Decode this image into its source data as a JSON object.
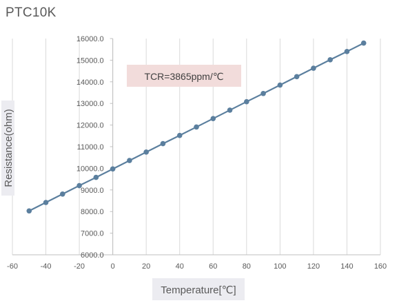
{
  "chart_data": {
    "type": "line",
    "title": "PTC10K",
    "xlabel": "Temperature[℃]",
    "ylabel": "Resistance(ohm)",
    "annotation": "TCR=3865ppm/℃",
    "xlim": [
      -60,
      160
    ],
    "ylim": [
      6000,
      16000
    ],
    "x_ticks": [
      "-60",
      "-40",
      "-20",
      "0",
      "20",
      "40",
      "60",
      "80",
      "100",
      "120",
      "140",
      "160"
    ],
    "y_ticks": [
      "6000.0",
      "7000.0",
      "8000.0",
      "9000.0",
      "10000.0",
      "11000.0",
      "12000.0",
      "13000.0",
      "14000.0",
      "15000.0",
      "16000.0"
    ],
    "grid": "vertical",
    "series": [
      {
        "x": [
          -50,
          -40,
          -30,
          -20,
          -10,
          0,
          10,
          20,
          30,
          40,
          50,
          60,
          70,
          80,
          90,
          100,
          110,
          120,
          130,
          140,
          150
        ],
        "values": [
          8030,
          8420,
          8810,
          9200,
          9580,
          9970,
          10360,
          10750,
          11140,
          11520,
          11910,
          12300,
          12690,
          13080,
          13460,
          13850,
          14240,
          14630,
          15020,
          15400,
          15790
        ],
        "color": "#5b7f9e"
      }
    ]
  }
}
